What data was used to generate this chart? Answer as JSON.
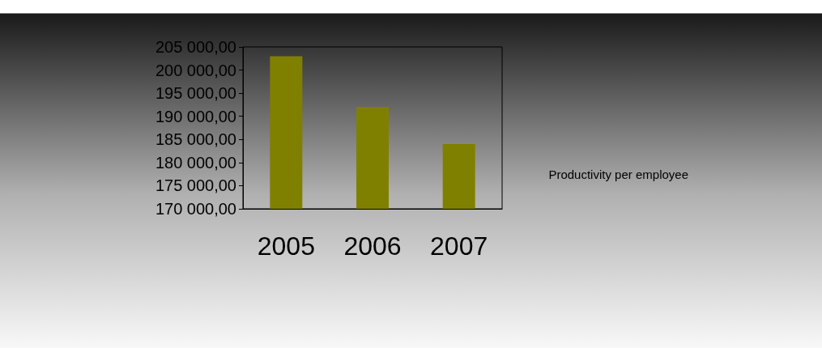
{
  "chart_data": {
    "type": "bar",
    "categories": [
      "2005",
      "2006",
      "2007"
    ],
    "series": [
      {
        "name": "Productivity per employee",
        "color": "#808000",
        "values": [
          203000,
          192000,
          184000
        ]
      }
    ],
    "ylim": [
      170000,
      205000
    ],
    "yticks": [
      {
        "value": 170000,
        "label": "170 000,00"
      },
      {
        "value": 175000,
        "label": "175 000,00"
      },
      {
        "value": 180000,
        "label": "180 000,00"
      },
      {
        "value": 185000,
        "label": "185 000,00"
      },
      {
        "value": 190000,
        "label": "190 000,00"
      },
      {
        "value": 195000,
        "label": "195 000,00"
      },
      {
        "value": 200000,
        "label": "200 000,00"
      },
      {
        "value": 205000,
        "label": "205 000,00"
      }
    ],
    "grid": false,
    "legend": "right"
  }
}
